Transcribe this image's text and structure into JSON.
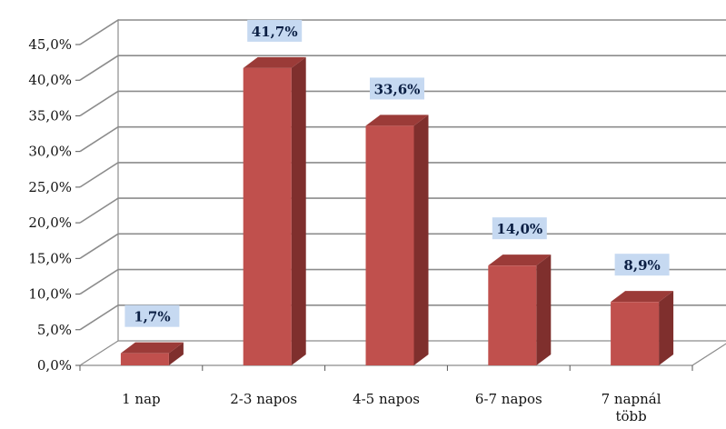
{
  "chart_data": {
    "type": "bar",
    "three_d": true,
    "categories": [
      "1 nap",
      "2-3 napos",
      "4-5 napos",
      "6-7 napos",
      "7 napnál több"
    ],
    "values": [
      1.7,
      41.7,
      33.6,
      14.0,
      8.9
    ],
    "data_labels": [
      "1,7%",
      "41,7%",
      "33,6%",
      "14,0%",
      "8,9%"
    ],
    "y_ticks": [
      "0,0%",
      "5,0%",
      "10,0%",
      "15,0%",
      "20,0%",
      "25,0%",
      "30,0%",
      "35,0%",
      "40,0%",
      "45,0%"
    ],
    "ylim": [
      0,
      45
    ],
    "ystep": 5,
    "grid": true,
    "legend": "none",
    "colors": {
      "bar_front": "#c0504d",
      "bar_side": "#7f2f2d",
      "bar_top": "#9b3b38",
      "grid": "#8c8c8c",
      "label_box": "#c6d9f1"
    }
  }
}
